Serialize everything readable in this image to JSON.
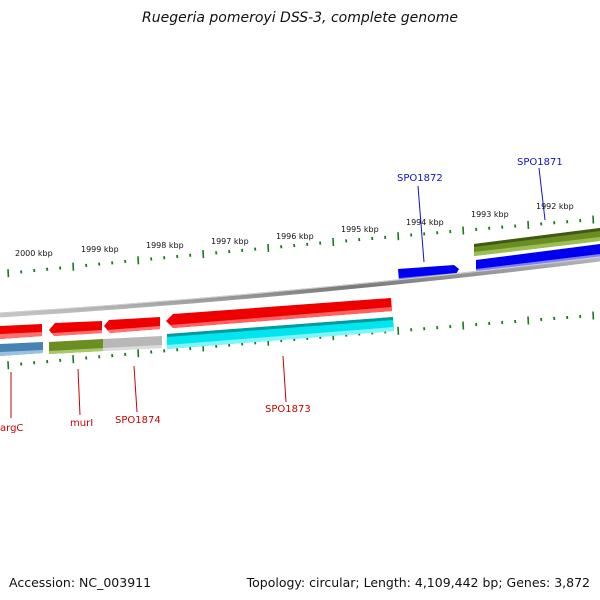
{
  "title": "Ruegeria pomeroyi DSS-3, complete genome",
  "footer": {
    "accession": "Accession: NC_003911",
    "summary": "Topology: circular; Length: 4,109,442 bp; Genes: 3,872"
  },
  "scale_labels": [
    "2000 kbp",
    "1999 kbp",
    "1998 kbp",
    "1997 kbp",
    "1996 kbp",
    "1995 kbp",
    "1994 kbp",
    "1993 kbp",
    "1992 kbp"
  ],
  "gene_labels": {
    "forward": [
      "SPO1872",
      "SPO1871"
    ],
    "reverse": [
      "argC",
      "murI",
      "SPO1874",
      "SPO1873"
    ]
  },
  "colors": {
    "forward_label": "#1010cc",
    "reverse_label": "#cc0000",
    "tick": "#1a7a1a",
    "backbone": "#8a8a8a",
    "red_cds": "#ee0000",
    "blue_cds": "#0000ee",
    "olive_cds": "#6b8e23",
    "cyan_cds": "#00e5ee",
    "steel_cds": "#4682b4",
    "gray_cds": "#b8b8b8"
  }
}
